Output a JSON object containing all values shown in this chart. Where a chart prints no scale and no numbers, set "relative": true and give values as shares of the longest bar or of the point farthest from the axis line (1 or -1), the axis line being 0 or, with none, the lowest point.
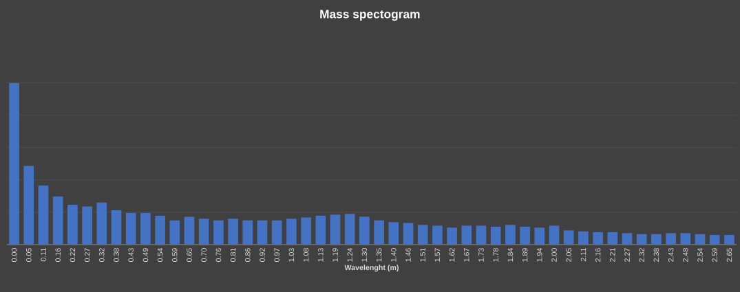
{
  "chart_data": {
    "type": "bar",
    "title": "Mass spectogram",
    "xlabel": "Wavelenght (m)",
    "categories": [
      "0.00",
      "0.05",
      "0.11",
      "0.16",
      "0.22",
      "0.27",
      "0.32",
      "0.38",
      "0.43",
      "0.49",
      "0.54",
      "0.59",
      "0.65",
      "0.70",
      "0.76",
      "0.81",
      "0.86",
      "0.92",
      "0.97",
      "1.03",
      "1.08",
      "1.13",
      "1.19",
      "1.24",
      "1.30",
      "1.35",
      "1.40",
      "1.46",
      "1.51",
      "1.57",
      "1.62",
      "1.67",
      "1.73",
      "1.78",
      "1.84",
      "1.89",
      "1.94",
      "2.00",
      "2.05",
      "2.11",
      "2.16",
      "2.21",
      "2.27",
      "2.32",
      "2.38",
      "2.43",
      "2.48",
      "2.54",
      "2.59",
      "2.65"
    ],
    "values": [
      1,
      0.487,
      0.366,
      0.298,
      0.247,
      0.236,
      0.26,
      0.213,
      0.196,
      0.196,
      0.179,
      0.15,
      0.172,
      0.16,
      0.15,
      0.16,
      0.15,
      0.15,
      0.15,
      0.16,
      0.168,
      0.179,
      0.185,
      0.19,
      0.173,
      0.15,
      0.139,
      0.134,
      0.122,
      0.117,
      0.105,
      0.117,
      0.117,
      0.111,
      0.122,
      0.111,
      0.105,
      0.117,
      0.088,
      0.082,
      0.077,
      0.077,
      0.071,
      0.065,
      0.065,
      0.071,
      0.071,
      0.065,
      0.06,
      0.06
    ],
    "color": "#4472c4",
    "relative": true,
    "grid": "y"
  }
}
